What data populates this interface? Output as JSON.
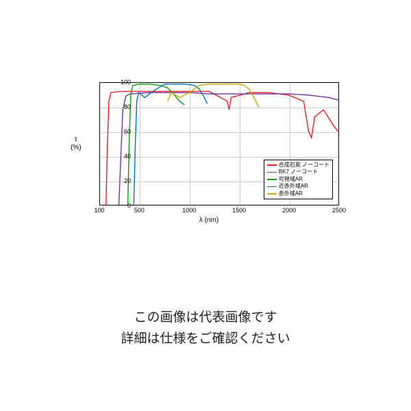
{
  "chart": {
    "type": "line",
    "xlim": [
      100,
      2500
    ],
    "ylim": [
      0,
      100
    ],
    "xtick_step": 500,
    "xtick_start": 100,
    "ytick_step": 20,
    "xlabel": "λ (nm)",
    "ylabel_top": "τ",
    "ylabel_bottom": "(%)",
    "xticks": [
      100,
      500,
      1000,
      1500,
      2000,
      2500
    ],
    "yticks": [
      0,
      20,
      40,
      60,
      80,
      100
    ],
    "plot_bg": "#ffffff",
    "grid_color": "#cccccc",
    "border_color": "#000000",
    "line_width": 1.4,
    "series": [
      {
        "label": "合成石英 ノーコート",
        "color": "#e91e1e",
        "points": [
          [
            160,
            0
          ],
          [
            175,
            50
          ],
          [
            190,
            85
          ],
          [
            210,
            92
          ],
          [
            300,
            93
          ],
          [
            500,
            93
          ],
          [
            800,
            93
          ],
          [
            1000,
            93
          ],
          [
            1200,
            93
          ],
          [
            1380,
            85
          ],
          [
            1400,
            78
          ],
          [
            1420,
            88
          ],
          [
            1600,
            92
          ],
          [
            1800,
            92
          ],
          [
            2000,
            90
          ],
          [
            2150,
            85
          ],
          [
            2200,
            60
          ],
          [
            2230,
            55
          ],
          [
            2260,
            72
          ],
          [
            2350,
            78
          ],
          [
            2450,
            65
          ],
          [
            2500,
            60
          ]
        ]
      },
      {
        "label": "BK7 ノーコート",
        "color": "#7030a0",
        "points": [
          [
            290,
            0
          ],
          [
            310,
            40
          ],
          [
            330,
            78
          ],
          [
            360,
            89
          ],
          [
            400,
            91
          ],
          [
            600,
            92
          ],
          [
            800,
            92
          ],
          [
            1000,
            92
          ],
          [
            1200,
            91
          ],
          [
            1400,
            91
          ],
          [
            1600,
            91
          ],
          [
            1800,
            91
          ],
          [
            2000,
            91
          ],
          [
            2200,
            90
          ],
          [
            2400,
            88
          ],
          [
            2500,
            86
          ]
        ]
      },
      {
        "label": "可視域AR",
        "color": "#00a000",
        "points": [
          [
            380,
            0
          ],
          [
            395,
            55
          ],
          [
            410,
            90
          ],
          [
            430,
            98
          ],
          [
            500,
            99
          ],
          [
            600,
            99
          ],
          [
            700,
            98
          ],
          [
            780,
            96
          ],
          [
            850,
            90
          ],
          [
            900,
            85
          ],
          [
            950,
            82
          ]
        ]
      },
      {
        "label": "近赤外域AR",
        "color": "#0070c0",
        "points": [
          [
            440,
            0
          ],
          [
            455,
            50
          ],
          [
            470,
            85
          ],
          [
            490,
            92
          ],
          [
            550,
            88
          ],
          [
            650,
            94
          ],
          [
            750,
            99
          ],
          [
            850,
            99
          ],
          [
            950,
            99
          ],
          [
            1050,
            98
          ],
          [
            1100,
            95
          ],
          [
            1150,
            88
          ],
          [
            1180,
            83
          ]
        ]
      },
      {
        "label": "赤外域AR",
        "color": "#d4a800",
        "points": [
          [
            780,
            85
          ],
          [
            820,
            92
          ],
          [
            900,
            88
          ],
          [
            1000,
            92
          ],
          [
            1100,
            98
          ],
          [
            1200,
            99
          ],
          [
            1300,
            99
          ],
          [
            1400,
            99
          ],
          [
            1500,
            99
          ],
          [
            1550,
            98
          ],
          [
            1600,
            95
          ],
          [
            1650,
            88
          ],
          [
            1700,
            80
          ]
        ]
      }
    ],
    "legend_position": "bottom-right"
  },
  "caption": {
    "line1": "この画像は代表画像です",
    "line2": "詳細は仕様をご確認ください"
  }
}
